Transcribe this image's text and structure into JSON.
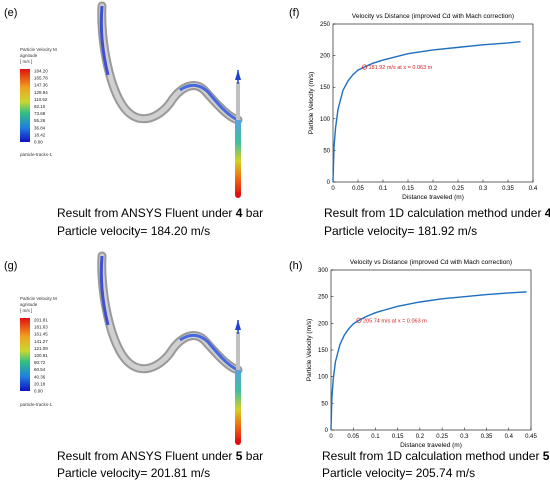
{
  "panels": {
    "e": {
      "label": "(e)",
      "caption_line1_pre": "Result from ANSYS Fluent under ",
      "caption_line1_bold": "4",
      "caption_line1_post": " bar",
      "caption_line2": "Particle velocity= 184.20 m/s",
      "legend_title_1": "Particle Velocity M",
      "legend_title_2": "agnitude",
      "legend_title_3": "[ m/s ]",
      "legend_ticks": [
        "184.20",
        "165.78",
        "147.36",
        "128.94",
        "110.52",
        "92.10",
        "73.68",
        "55.26",
        "36.84",
        "18.42",
        "0.00"
      ],
      "legend_footer": "particle-tracks-1"
    },
    "f": {
      "label": "(f)",
      "caption_line1_pre": "Result from 1D calculation method under ",
      "caption_line1_bold": "4",
      "caption_line1_post": " bar",
      "caption_line2": "Particle velocity= 181.92 m/s"
    },
    "g": {
      "label": "(g)",
      "caption_line1_pre": "Result from ANSYS Fluent under ",
      "caption_line1_bold": "5",
      "caption_line1_post": " bar",
      "caption_line2": "Particle velocity= 201.81 m/s",
      "legend_title_1": "Particle Velocity M",
      "legend_title_2": "agnitude",
      "legend_title_3": "[ m/s ]",
      "legend_ticks": [
        "201.81",
        "181.63",
        "161.45",
        "141.27",
        "121.09",
        "100.91",
        "80.72",
        "60.54",
        "40.36",
        "20.18",
        "0.00"
      ],
      "legend_footer": "particle-tracks-1"
    },
    "h": {
      "label": "(h)",
      "caption_line1_pre": "Result from 1D calculation method under ",
      "caption_line1_bold": "5",
      "caption_line1_post": " bar",
      "caption_line2": "Particle velocity= 205.74 m/s"
    }
  },
  "colors": {
    "curve": "#1f6fbf",
    "annotation": "#d42020",
    "tube": "#b8b8b8"
  },
  "chart_data": [
    {
      "type": "line",
      "title": "Velocity vs Distance (improved Cd with Mach correction)",
      "xlabel": "Distance traveled (m)",
      "ylabel": "Particle Velocity (m/s)",
      "xlim": [
        0,
        0.4
      ],
      "ylim": [
        0,
        250
      ],
      "xticks": [
        "0",
        "0.05",
        "0.1",
        "0.15",
        "0.2",
        "0.25",
        "0.3",
        "0.35",
        "0.4"
      ],
      "yticks": [
        "0",
        "50",
        "100",
        "150",
        "200",
        "250"
      ],
      "series": [
        {
          "x": [
            0,
            0.002,
            0.005,
            0.01,
            0.02,
            0.03,
            0.04,
            0.05,
            0.063,
            0.08,
            0.1,
            0.15,
            0.2,
            0.25,
            0.3,
            0.35,
            0.375
          ],
          "y": [
            0,
            55,
            85,
            115,
            145,
            160,
            170,
            177,
            181.92,
            188,
            193,
            203,
            209,
            213,
            217,
            220,
            222
          ]
        }
      ],
      "annotation": {
        "x": 0.063,
        "y": 181.92,
        "text": "181.92 m/s at x = 0.063 m"
      },
      "grid": false
    },
    {
      "type": "line",
      "title": "Velocity vs Distance (improved Cd with Mach correction)",
      "xlabel": "Distance traveled (m)",
      "ylabel": "Particle Velocity (m/s)",
      "xlim": [
        0,
        0.45
      ],
      "ylim": [
        0,
        300
      ],
      "xticks": [
        "0",
        "0.05",
        "0.1",
        "0.15",
        "0.2",
        "0.25",
        "0.3",
        "0.35",
        "0.4",
        "0.45"
      ],
      "yticks": [
        "0",
        "50",
        "100",
        "150",
        "200",
        "250",
        "300"
      ],
      "series": [
        {
          "x": [
            0,
            0.002,
            0.005,
            0.01,
            0.02,
            0.03,
            0.04,
            0.05,
            0.063,
            0.08,
            0.1,
            0.15,
            0.2,
            0.25,
            0.3,
            0.35,
            0.4,
            0.44
          ],
          "y": [
            0,
            60,
            95,
            128,
            160,
            178,
            190,
            199,
            205.74,
            213,
            220,
            232,
            240,
            246,
            250,
            254,
            257,
            259
          ]
        }
      ],
      "annotation": {
        "x": 0.063,
        "y": 205.74,
        "text": "205.74 m/s at x = 0.063 m"
      },
      "grid": false
    }
  ]
}
